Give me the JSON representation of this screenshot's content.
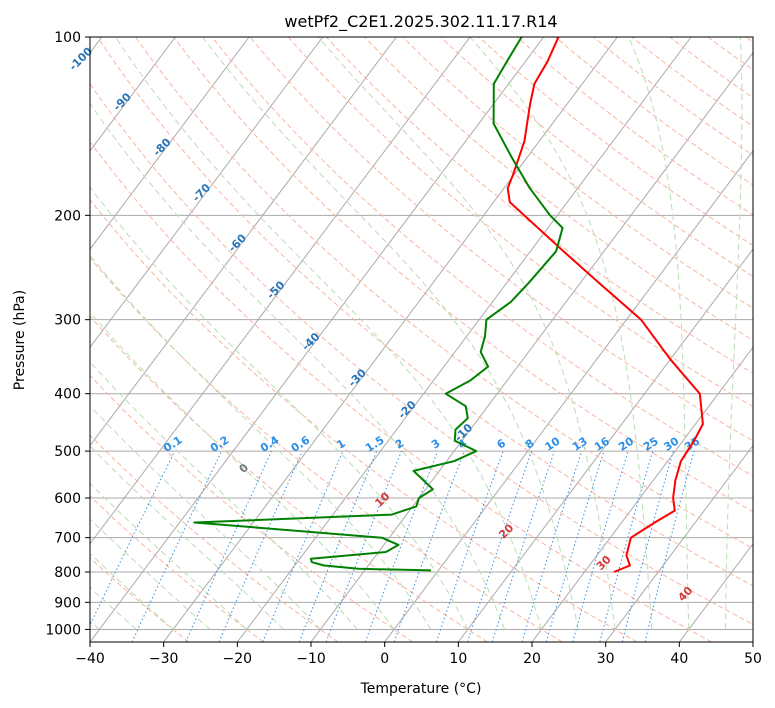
{
  "chart_data": {
    "type": "line",
    "subtype": "skew-T log-P diagram",
    "title": "wetPf2_C2E1.2025.302.11.17.R14",
    "xlabel": "Temperature (°C)",
    "ylabel": "Pressure (hPa)",
    "xlim": [
      -40,
      50
    ],
    "ylim": [
      1050,
      100
    ],
    "y_scale": "log",
    "x_ticks": [
      -40,
      -30,
      -20,
      -10,
      0,
      10,
      20,
      30,
      40,
      50
    ],
    "y_ticks": [
      100,
      200,
      300,
      400,
      500,
      600,
      700,
      800,
      900,
      1000
    ],
    "grid": true,
    "dry_adiabat_labels": [
      -100,
      -90,
      -80,
      -70,
      -60,
      -50,
      -40,
      -30,
      -20,
      -10
    ],
    "moist_adiabat_labels": [
      0,
      10,
      20,
      30,
      40
    ],
    "mixing_ratio_labels": [
      "0.1",
      "0.2",
      "0.4",
      "0.6",
      "1",
      "1.5",
      "2",
      "3",
      "4",
      "6",
      "8",
      "10",
      "13",
      "16",
      "20",
      "25",
      "30",
      "36"
    ],
    "colors": {
      "temperature": "#ff0000",
      "dewpoint": "#008000",
      "dry_adiabats": "#f7b6a2",
      "moist_adiabats": "#b9ddb4",
      "mixing_ratio": "#3a8fe0",
      "isotherms": "#aaaaaa"
    },
    "series": [
      {
        "name": "temperature",
        "points": [
          [
            800,
            24.0
          ],
          [
            780,
            25.5
          ],
          [
            750,
            24.0
          ],
          [
            700,
            22.8
          ],
          [
            660,
            24.5
          ],
          [
            630,
            26.0
          ],
          [
            600,
            24.5
          ],
          [
            560,
            23.0
          ],
          [
            520,
            21.8
          ],
          [
            480,
            21.5
          ],
          [
            450,
            21.0
          ],
          [
            400,
            17.5
          ],
          [
            350,
            10.0
          ],
          [
            300,
            2.0
          ],
          [
            260,
            -7.5
          ],
          [
            230,
            -15.5
          ],
          [
            200,
            -24.5
          ],
          [
            190,
            -27.8
          ],
          [
            180,
            -29.5
          ],
          [
            170,
            -30.2
          ],
          [
            150,
            -32.0
          ],
          [
            130,
            -35.0
          ],
          [
            120,
            -36.5
          ],
          [
            110,
            -37.0
          ],
          [
            100,
            -38.0
          ]
        ]
      },
      {
        "name": "dewpoint",
        "points": [
          [
            795,
            -1.0
          ],
          [
            790,
            -11.0
          ],
          [
            780,
            -16.0
          ],
          [
            770,
            -18.0
          ],
          [
            760,
            -18.5
          ],
          [
            740,
            -9.0
          ],
          [
            720,
            -8.0
          ],
          [
            700,
            -11.0
          ],
          [
            660,
            -38.0
          ],
          [
            640,
            -12.0
          ],
          [
            620,
            -9.5
          ],
          [
            600,
            -10.0
          ],
          [
            580,
            -9.0
          ],
          [
            540,
            -13.5
          ],
          [
            520,
            -9.0
          ],
          [
            500,
            -7.0
          ],
          [
            480,
            -11.0
          ],
          [
            460,
            -12.0
          ],
          [
            440,
            -11.5
          ],
          [
            420,
            -13.0
          ],
          [
            400,
            -17.0
          ],
          [
            380,
            -15.0
          ],
          [
            360,
            -14.0
          ],
          [
            340,
            -16.5
          ],
          [
            320,
            -17.5
          ],
          [
            300,
            -19.0
          ],
          [
            280,
            -17.5
          ],
          [
            260,
            -17.0
          ],
          [
            230,
            -16.5
          ],
          [
            210,
            -18.0
          ],
          [
            200,
            -21.0
          ],
          [
            180,
            -26.5
          ],
          [
            160,
            -32.0
          ],
          [
            140,
            -38.0
          ],
          [
            120,
            -42.0
          ],
          [
            110,
            -42.5
          ],
          [
            100,
            -43.0
          ]
        ]
      }
    ]
  }
}
